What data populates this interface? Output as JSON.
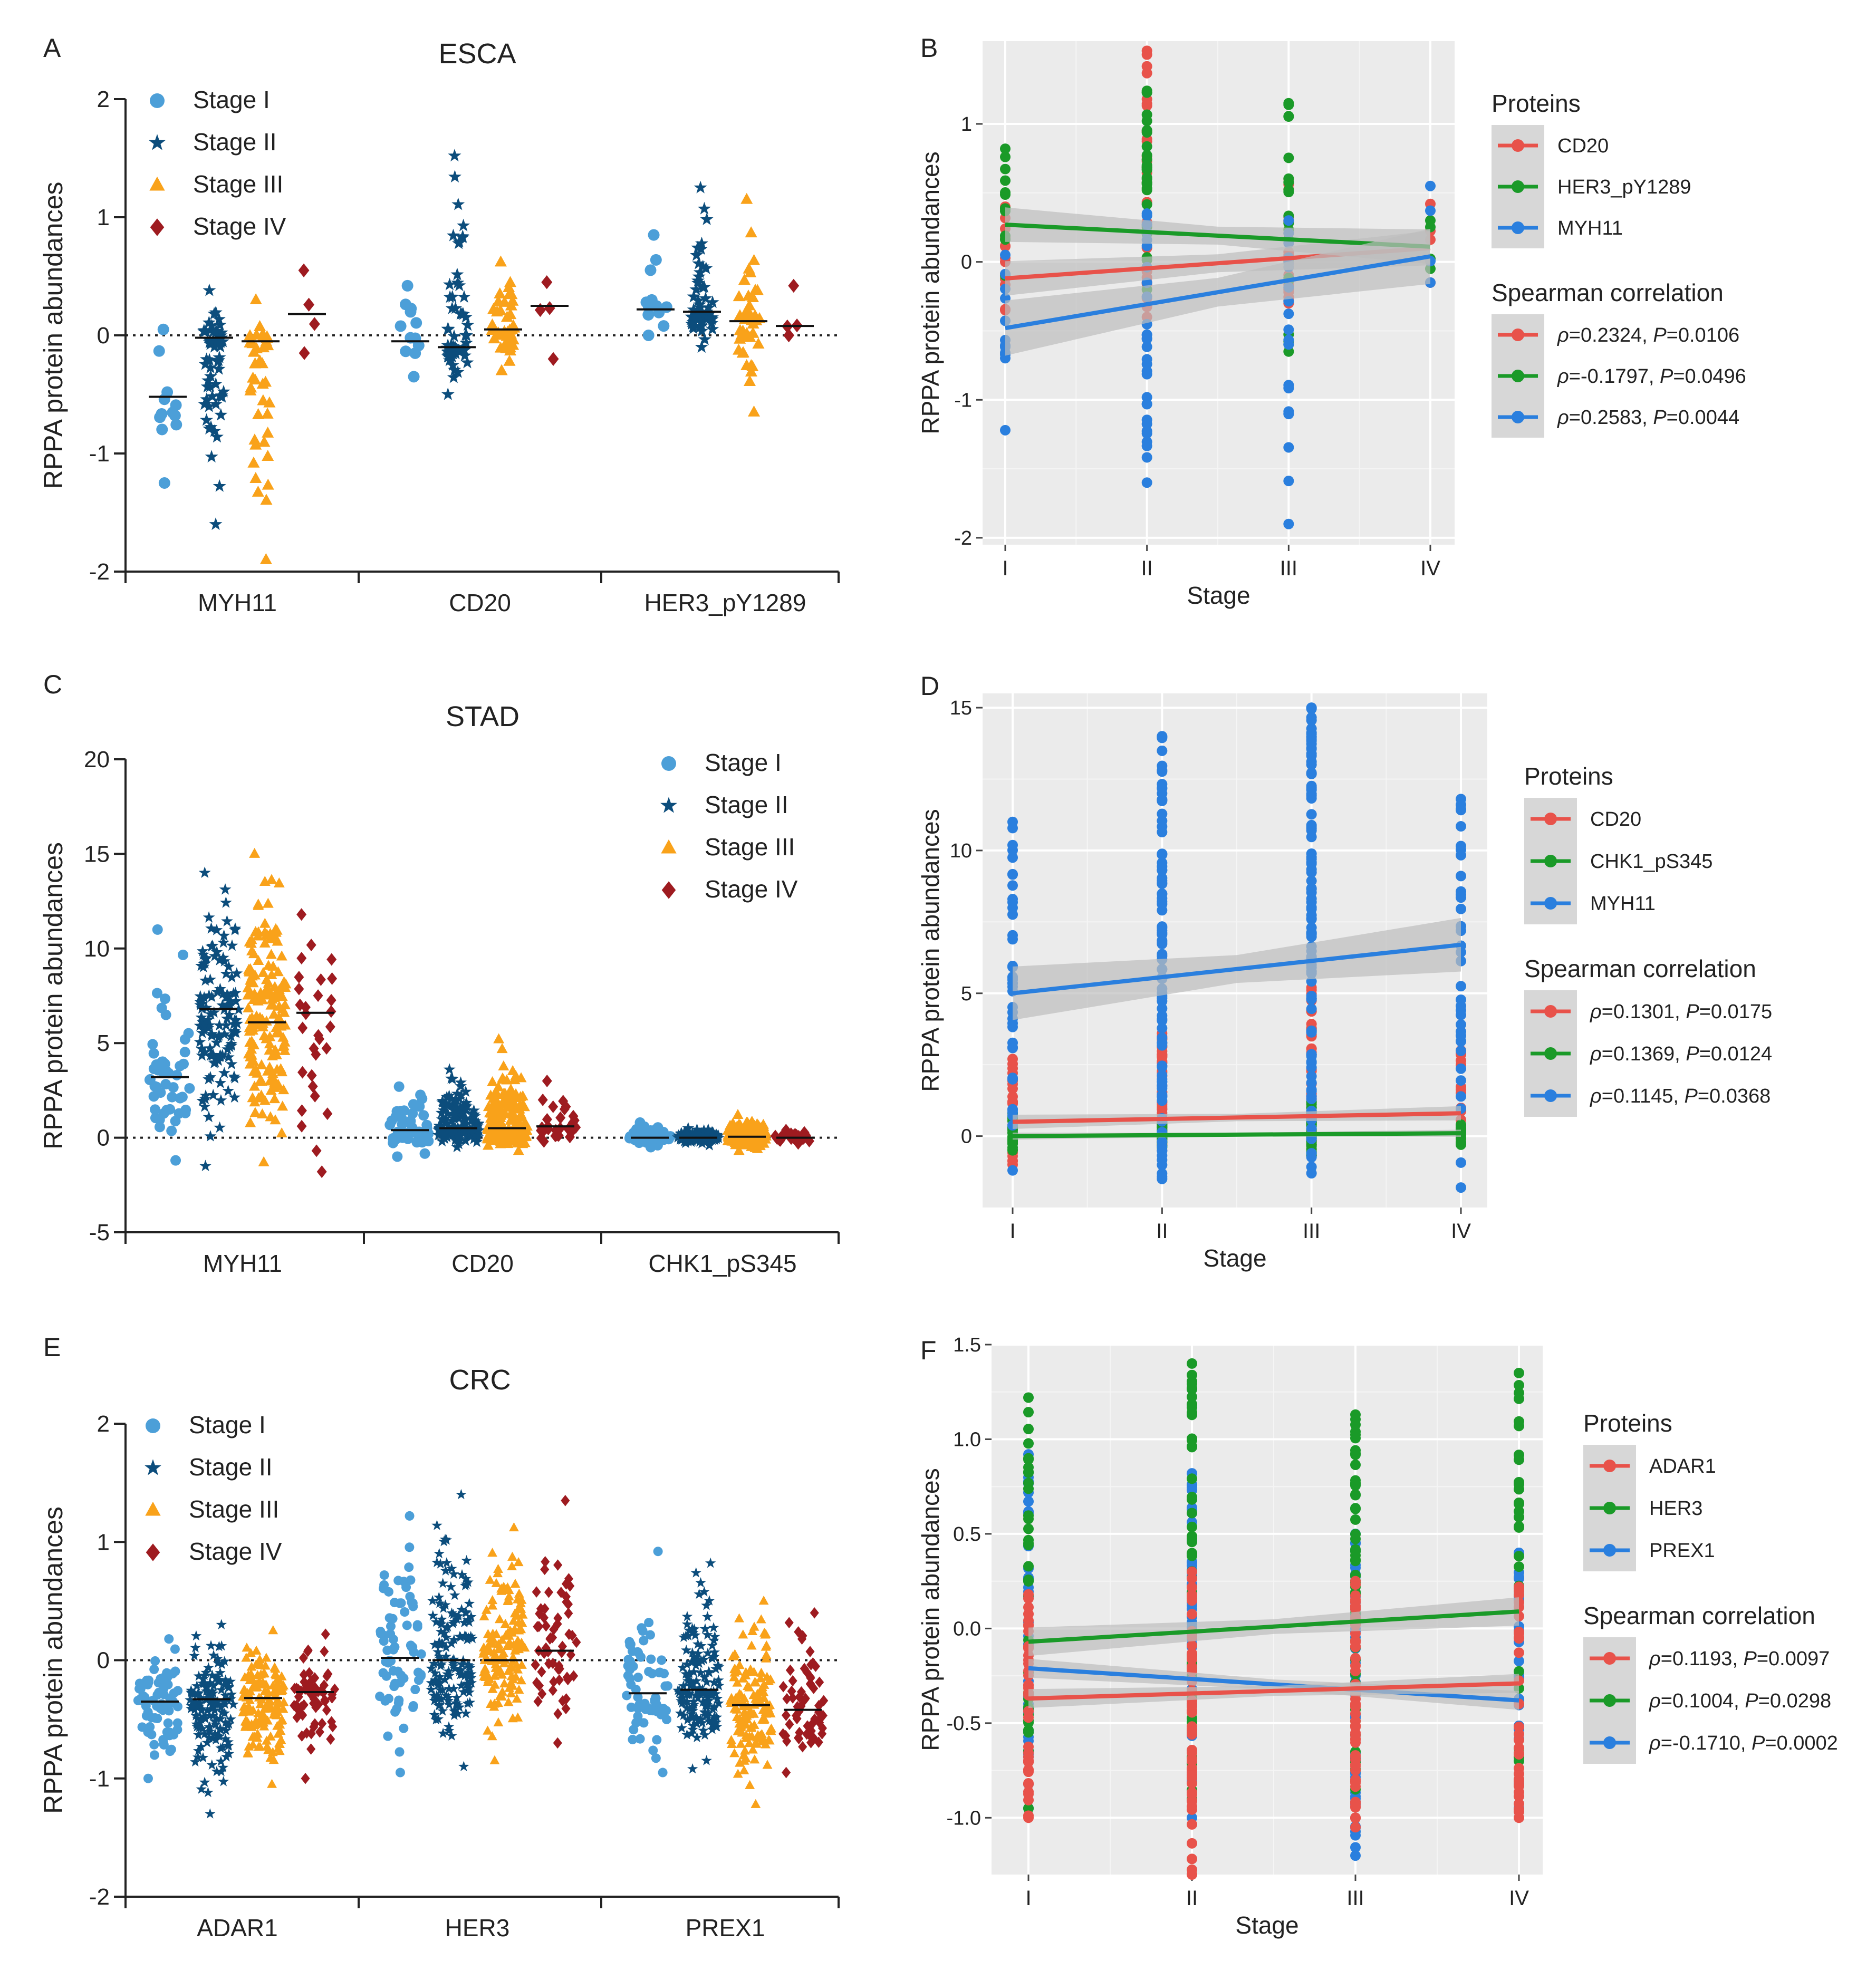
{
  "figure": {
    "colors": {
      "stage1": "#4c9fd8",
      "stage2": "#0c4d7c",
      "stage3": "#f9a21a",
      "stage4": "#9e1b20",
      "red": "#e8524a",
      "green": "#1a9a28",
      "blue": "#2a7fde",
      "panel_bg": "#ebebeb",
      "band": "#bdbdbd"
    },
    "icons": {
      "stage1": "circle-marker",
      "stage2": "star-marker",
      "stage3": "triangle-marker",
      "stage4": "diamond-marker"
    }
  },
  "chart_data": [
    {
      "panel": "A",
      "type": "scatter",
      "title": "ESCA",
      "ylabel": "RPPA protein abundances",
      "ylim": [
        -2,
        2
      ],
      "yticks": [
        -2,
        -1,
        0,
        1,
        2
      ],
      "categories": [
        "MYH11",
        "CD20",
        "HER3_pY1289"
      ],
      "legend": [
        "Stage I",
        "Stage II",
        "Stage III",
        "Stage IV"
      ],
      "groups": [
        {
          "category": "MYH11",
          "stage": 1,
          "n": 12,
          "center": -0.5,
          "lo": -1.25,
          "hi": 0.05,
          "median": -0.52
        },
        {
          "category": "MYH11",
          "stage": 2,
          "n": 60,
          "center": -0.1,
          "lo": -1.6,
          "hi": 0.38,
          "median": -0.02
        },
        {
          "category": "MYH11",
          "stage": 3,
          "n": 40,
          "center": -0.15,
          "lo": -1.9,
          "hi": 0.3,
          "median": -0.05
        },
        {
          "category": "MYH11",
          "stage": 4,
          "n": 4,
          "center": 0.15,
          "lo": -0.15,
          "hi": 0.55,
          "median": 0.18
        },
        {
          "category": "CD20",
          "stage": 1,
          "n": 12,
          "center": -0.05,
          "lo": -0.35,
          "hi": 0.42,
          "median": -0.05
        },
        {
          "category": "CD20",
          "stage": 2,
          "n": 60,
          "center": -0.05,
          "lo": -0.5,
          "hi": 1.52,
          "median": -0.1
        },
        {
          "category": "CD20",
          "stage": 3,
          "n": 40,
          "center": 0.05,
          "lo": -0.3,
          "hi": 0.62,
          "median": 0.05
        },
        {
          "category": "CD20",
          "stage": 4,
          "n": 4,
          "center": 0.2,
          "lo": -0.2,
          "hi": 0.45,
          "median": 0.25
        },
        {
          "category": "HER3_pY1289",
          "stage": 1,
          "n": 12,
          "center": 0.25,
          "lo": 0.0,
          "hi": 0.85,
          "median": 0.22
        },
        {
          "category": "HER3_pY1289",
          "stage": 2,
          "n": 60,
          "center": 0.2,
          "lo": -0.1,
          "hi": 1.25,
          "median": 0.2
        },
        {
          "category": "HER3_pY1289",
          "stage": 3,
          "n": 40,
          "center": 0.15,
          "lo": -0.65,
          "hi": 1.15,
          "median": 0.12
        },
        {
          "category": "HER3_pY1289",
          "stage": 4,
          "n": 4,
          "center": 0.1,
          "lo": 0.0,
          "hi": 0.42,
          "median": 0.08
        }
      ]
    },
    {
      "panel": "B",
      "type": "scatter",
      "xlabel": "Stage",
      "ylabel": "RPPA  protein  abundances",
      "ylim": [
        -2.05,
        1.6
      ],
      "yticks": [
        -2,
        -1,
        0,
        1
      ],
      "categories": [
        "I",
        "II",
        "III",
        "IV"
      ],
      "legend_title": "Proteins",
      "legend": [
        "CD20",
        "HER3_pY1289",
        "MYH11"
      ],
      "corr_title": "Spearman correlation",
      "corr": [
        {
          "rho_label": "ρ",
          "rho_value": "=0.2324, ",
          "p_label": "P",
          "p_value": "=0.0106"
        },
        {
          "rho_label": "ρ",
          "rho_value": "=-0.1797, ",
          "p_label": "P",
          "p_value": "=0.0496"
        },
        {
          "rho_label": "ρ",
          "rho_value": "=0.2583, ",
          "p_label": "P",
          "p_value": "=0.0044"
        }
      ],
      "series": [
        {
          "name": "CD20",
          "stages": [
            {
              "n": 12,
              "lo": -0.35,
              "hi": 0.4
            },
            {
              "n": 30,
              "lo": -0.4,
              "hi": 1.53
            },
            {
              "n": 20,
              "lo": -0.3,
              "hi": 0.6
            },
            {
              "n": 4,
              "lo": -0.15,
              "hi": 0.42
            }
          ],
          "fit": [
            -0.12,
            0.1
          ],
          "band": 0.1
        },
        {
          "name": "HER3_pY1289",
          "stages": [
            {
              "n": 12,
              "lo": -0.1,
              "hi": 0.82
            },
            {
              "n": 30,
              "lo": -0.2,
              "hi": 1.24
            },
            {
              "n": 20,
              "lo": -0.65,
              "hi": 1.15
            },
            {
              "n": 4,
              "lo": -0.05,
              "hi": 0.3
            }
          ],
          "fit": [
            0.27,
            0.11
          ],
          "band": 0.1
        },
        {
          "name": "MYH11",
          "stages": [
            {
              "n": 12,
              "lo": -1.22,
              "hi": 0.05
            },
            {
              "n": 30,
              "lo": -1.6,
              "hi": 0.35
            },
            {
              "n": 20,
              "lo": -1.9,
              "hi": 0.3
            },
            {
              "n": 4,
              "lo": -0.15,
              "hi": 0.55
            }
          ],
          "fit": [
            -0.48,
            0.04
          ],
          "band": 0.16
        }
      ]
    },
    {
      "panel": "C",
      "type": "scatter",
      "title": "STAD",
      "ylabel": "RPPA protein abundances",
      "ylim": [
        -5,
        20
      ],
      "yticks": [
        -5,
        0,
        5,
        10,
        15,
        20
      ],
      "categories": [
        "MYH11",
        "CD20",
        "CHK1_pS345"
      ],
      "legend": [
        "Stage I",
        "Stage II",
        "Stage III",
        "Stage IV"
      ],
      "groups": [
        {
          "category": "MYH11",
          "stage": 1,
          "n": 50,
          "center": 3.5,
          "lo": -1.2,
          "hi": 11,
          "median": 3.2
        },
        {
          "category": "MYH11",
          "stage": 2,
          "n": 130,
          "center": 6.5,
          "lo": -1.5,
          "hi": 14,
          "median": 6.8
        },
        {
          "category": "MYH11",
          "stage": 3,
          "n": 170,
          "center": 6,
          "lo": -1.3,
          "hi": 15,
          "median": 6.1
        },
        {
          "category": "MYH11",
          "stage": 4,
          "n": 30,
          "center": 6.5,
          "lo": -1.8,
          "hi": 11.8,
          "median": 6.6
        },
        {
          "category": "CD20",
          "stage": 1,
          "n": 50,
          "center": 0.4,
          "lo": -1,
          "hi": 2.7,
          "median": 0.4
        },
        {
          "category": "CD20",
          "stage": 2,
          "n": 130,
          "center": 0.5,
          "lo": -0.5,
          "hi": 3.6,
          "median": 0.5
        },
        {
          "category": "CD20",
          "stage": 3,
          "n": 170,
          "center": 0.5,
          "lo": -0.7,
          "hi": 5.2,
          "median": 0.5
        },
        {
          "category": "CD20",
          "stage": 4,
          "n": 30,
          "center": 0.6,
          "lo": -0.2,
          "hi": 3,
          "median": 0.6
        },
        {
          "category": "CHK1_pS345",
          "stage": 1,
          "n": 50,
          "center": 0.05,
          "lo": -0.5,
          "hi": 0.8,
          "median": 0
        },
        {
          "category": "CHK1_pS345",
          "stage": 2,
          "n": 130,
          "center": 0.05,
          "lo": -0.4,
          "hi": 0.5,
          "median": 0
        },
        {
          "category": "CHK1_pS345",
          "stage": 3,
          "n": 170,
          "center": 0.1,
          "lo": -0.7,
          "hi": 1.2,
          "median": 0.05
        },
        {
          "category": "CHK1_pS345",
          "stage": 4,
          "n": 30,
          "center": 0.05,
          "lo": -0.3,
          "hi": 0.4,
          "median": 0
        }
      ]
    },
    {
      "panel": "D",
      "type": "scatter",
      "xlabel": "Stage",
      "ylabel": "RPPA  protein  abundances",
      "ylim": [
        -2.5,
        15.5
      ],
      "yticks": [
        0,
        5,
        10,
        15
      ],
      "categories": [
        "I",
        "II",
        "III",
        "IV"
      ],
      "legend_title": "Proteins",
      "legend": [
        "CD20",
        "CHK1_pS345",
        "MYH11"
      ],
      "corr_title": "Spearman correlation",
      "corr": [
        {
          "rho_label": "ρ",
          "rho_value": "=0.1301, ",
          "p_label": "P",
          "p_value": "=0.0175"
        },
        {
          "rho_label": "ρ",
          "rho_value": "=0.1369, ",
          "p_label": "P",
          "p_value": "=0.0124"
        },
        {
          "rho_label": "ρ",
          "rho_value": "=0.1145, ",
          "p_label": "P",
          "p_value": "=0.0368"
        }
      ],
      "series": [
        {
          "name": "CD20",
          "stages": [
            {
              "n": 25,
              "lo": -1,
              "hi": 2.7
            },
            {
              "n": 45,
              "lo": -0.5,
              "hi": 3.6
            },
            {
              "n": 50,
              "lo": -0.7,
              "hi": 5.2
            },
            {
              "n": 18,
              "lo": -0.2,
              "hi": 3
            }
          ],
          "fit": [
            0.5,
            0.8
          ],
          "band": 0.2
        },
        {
          "name": "CHK1_pS345",
          "stages": [
            {
              "n": 25,
              "lo": -0.5,
              "hi": 0.8
            },
            {
              "n": 45,
              "lo": -0.4,
              "hi": 0.5
            },
            {
              "n": 50,
              "lo": -0.7,
              "hi": 1.2
            },
            {
              "n": 18,
              "lo": -0.3,
              "hi": 0.4
            }
          ],
          "fit": [
            0.0,
            0.1
          ],
          "band": 0.1
        },
        {
          "name": "MYH11",
          "stages": [
            {
              "n": 40,
              "lo": -1.2,
              "hi": 11
            },
            {
              "n": 90,
              "lo": -1.5,
              "hi": 14
            },
            {
              "n": 100,
              "lo": -1.3,
              "hi": 15
            },
            {
              "n": 35,
              "lo": -1.8,
              "hi": 11.8
            }
          ],
          "fit": [
            5.0,
            6.7
          ],
          "band": 0.75
        }
      ]
    },
    {
      "panel": "E",
      "type": "scatter",
      "title": "CRC",
      "ylabel": "RPPA protein abundances",
      "ylim": [
        -2,
        2
      ],
      "yticks": [
        -2,
        -1,
        0,
        1,
        2
      ],
      "categories": [
        "ADAR1",
        "HER3",
        "PREX1"
      ],
      "legend": [
        "Stage I",
        "Stage II",
        "Stage III",
        "Stage IV"
      ],
      "groups": [
        {
          "category": "ADAR1",
          "stage": 1,
          "n": 70,
          "center": -0.35,
          "lo": -1.0,
          "hi": 0.18,
          "median": -0.35
        },
        {
          "category": "ADAR1",
          "stage": 2,
          "n": 150,
          "center": -0.35,
          "lo": -1.3,
          "hi": 0.3,
          "median": -0.33
        },
        {
          "category": "ADAR1",
          "stage": 3,
          "n": 140,
          "center": -0.35,
          "lo": -1.05,
          "hi": 0.25,
          "median": -0.32
        },
        {
          "category": "ADAR1",
          "stage": 4,
          "n": 60,
          "center": -0.3,
          "lo": -1.0,
          "hi": 0.22,
          "median": -0.27
        },
        {
          "category": "HER3",
          "stage": 1,
          "n": 70,
          "center": 0.0,
          "lo": -0.95,
          "hi": 1.22,
          "median": 0.02
        },
        {
          "category": "HER3",
          "stage": 2,
          "n": 150,
          "center": 0.0,
          "lo": -0.9,
          "hi": 1.4,
          "median": 0
        },
        {
          "category": "HER3",
          "stage": 3,
          "n": 140,
          "center": 0.05,
          "lo": -0.85,
          "hi": 1.12,
          "median": 0
        },
        {
          "category": "HER3",
          "stage": 4,
          "n": 60,
          "center": 0.1,
          "lo": -0.7,
          "hi": 1.35,
          "median": 0.08
        },
        {
          "category": "PREX1",
          "stage": 1,
          "n": 70,
          "center": -0.3,
          "lo": -0.95,
          "hi": 0.92,
          "median": -0.28
        },
        {
          "category": "PREX1",
          "stage": 2,
          "n": 150,
          "center": -0.25,
          "lo": -0.92,
          "hi": 0.82,
          "median": -0.25
        },
        {
          "category": "PREX1",
          "stage": 3,
          "n": 140,
          "center": -0.4,
          "lo": -1.22,
          "hi": 0.5,
          "median": -0.38
        },
        {
          "category": "PREX1",
          "stage": 4,
          "n": 60,
          "center": -0.45,
          "lo": -0.95,
          "hi": 0.4,
          "median": -0.42
        }
      ]
    },
    {
      "panel": "F",
      "type": "scatter",
      "xlabel": "Stage",
      "ylabel": "RPPA  protein  abundances",
      "ylim": [
        -1.3,
        1.5
      ],
      "yticks": [
        -1.0,
        -0.5,
        0.0,
        0.5,
        1.0,
        1.5
      ],
      "ytick_labels": [
        "-1.0",
        "-0.5",
        "0.0",
        "0.5",
        "1.0",
        "1.5"
      ],
      "categories": [
        "I",
        "II",
        "III",
        "IV"
      ],
      "legend_title": "Proteins",
      "legend": [
        "ADAR1",
        "HER3",
        "PREX1"
      ],
      "corr_title": "Spearman correlation",
      "corr": [
        {
          "rho_label": "ρ",
          "rho_value": "=0.1193, ",
          "p_label": "P",
          "p_value": "=0.0097"
        },
        {
          "rho_label": "ρ",
          "rho_value": "=0.1004, ",
          "p_label": "P",
          "p_value": "=0.0298"
        },
        {
          "rho_label": "ρ",
          "rho_value": "=-0.1710, ",
          "p_label": "P",
          "p_value": "=0.0002"
        }
      ],
      "series": [
        {
          "name": "PREX1",
          "stages": [
            {
              "n": 35,
              "lo": -0.95,
              "hi": 0.92
            },
            {
              "n": 55,
              "lo": -1.0,
              "hi": 0.82
            },
            {
              "n": 55,
              "lo": -1.2,
              "hi": 0.5
            },
            {
              "n": 30,
              "lo": -0.95,
              "hi": 0.4
            }
          ],
          "fit": [
            -0.21,
            -0.38
          ],
          "band": 0.04
        },
        {
          "name": "HER3",
          "stages": [
            {
              "n": 35,
              "lo": -0.95,
              "hi": 1.22
            },
            {
              "n": 55,
              "lo": -0.9,
              "hi": 1.4
            },
            {
              "n": 55,
              "lo": -0.85,
              "hi": 1.13
            },
            {
              "n": 30,
              "lo": -0.7,
              "hi": 1.35
            }
          ],
          "fit": [
            -0.07,
            0.09
          ],
          "band": 0.06
        },
        {
          "name": "ADAR1",
          "stages": [
            {
              "n": 40,
              "lo": -1.0,
              "hi": 0.18
            },
            {
              "n": 60,
              "lo": -1.3,
              "hi": 0.3
            },
            {
              "n": 60,
              "lo": -1.05,
              "hi": 0.25
            },
            {
              "n": 35,
              "lo": -1.0,
              "hi": 0.22
            }
          ],
          "fit": [
            -0.37,
            -0.29
          ],
          "band": 0.04
        }
      ]
    }
  ]
}
